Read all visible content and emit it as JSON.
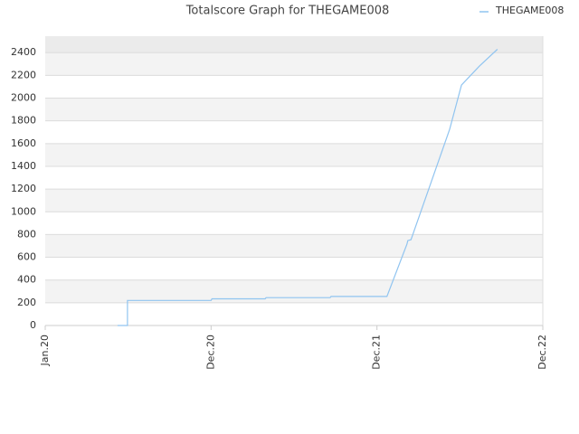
{
  "chart_data": {
    "type": "line",
    "title": "Totalscore Graph for THEGAME008",
    "x": [
      "2020-06-08",
      "2020-06-30",
      "2020-06-30",
      "2020-12-31",
      "2021-01-02",
      "2021-04-29",
      "2021-05-01",
      "2021-09-19",
      "2021-09-21",
      "2022-01-22",
      "2022-03-07",
      "2022-03-09",
      "2022-03-16",
      "2022-06-09",
      "2022-07-05",
      "2022-08-13",
      "2022-09-22"
    ],
    "series": [
      {
        "name": "THEGAME008",
        "color": "#90c4f0",
        "values": [
          0,
          0,
          220,
          220,
          235,
          235,
          245,
          245,
          255,
          255,
          715,
          747,
          755,
          1725,
          2115,
          2280,
          2430
        ]
      }
    ],
    "xlim": [
      "2020-01-01",
      "2022-12-31"
    ],
    "xticks": [
      {
        "value": "2020-01-01",
        "label": "Jan.20"
      },
      {
        "value": "2020-12-31",
        "label": "Dec.20"
      },
      {
        "value": "2021-12-31",
        "label": "Dec.21"
      },
      {
        "value": "2022-12-31",
        "label": "Dec.22"
      }
    ],
    "ylim": [
      0,
      2545
    ],
    "yticks": [
      0,
      200,
      400,
      600,
      800,
      1000,
      1200,
      1400,
      1600,
      1800,
      2000,
      2200,
      2400
    ],
    "grid": true,
    "legend": "top-right"
  }
}
